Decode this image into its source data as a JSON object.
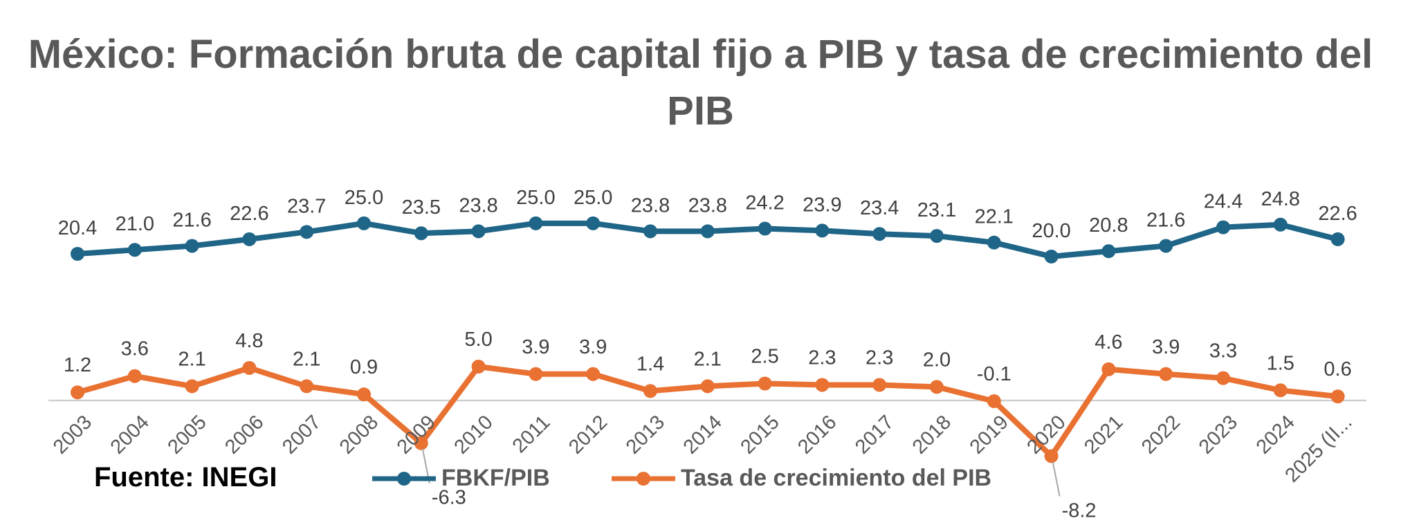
{
  "chart_data": {
    "type": "line",
    "title": "México: Formación bruta de capital fijo a PIB y tasa de crecimiento del PIB",
    "categories": [
      "2003",
      "2004",
      "2005",
      "2006",
      "2007",
      "2008",
      "2009",
      "2010",
      "2011",
      "2012",
      "2013",
      "2014",
      "2015",
      "2016",
      "2017",
      "2018",
      "2019",
      "2020",
      "2021",
      "2022",
      "2023",
      "2024",
      "2025 (II..."
    ],
    "series": [
      {
        "name": "FBKF/PIB",
        "color": "#1F6587",
        "values": [
          20.4,
          21.0,
          21.6,
          22.6,
          23.7,
          25.0,
          23.5,
          23.8,
          25.0,
          25.0,
          23.8,
          23.8,
          24.2,
          23.9,
          23.4,
          23.1,
          22.1,
          20.0,
          20.8,
          21.6,
          24.4,
          24.8,
          22.6
        ]
      },
      {
        "name": "Tasa de crecimiento del PIB",
        "color": "#E97132",
        "values": [
          1.2,
          3.6,
          2.1,
          4.8,
          2.1,
          0.9,
          -6.3,
          5.0,
          3.9,
          3.9,
          1.4,
          2.1,
          2.5,
          2.3,
          2.3,
          2.0,
          -0.1,
          -8.2,
          4.6,
          3.9,
          3.3,
          1.5,
          0.6
        ]
      }
    ],
    "legend_position": "bottom",
    "grid": false,
    "source": "Fuente: INEGI"
  }
}
